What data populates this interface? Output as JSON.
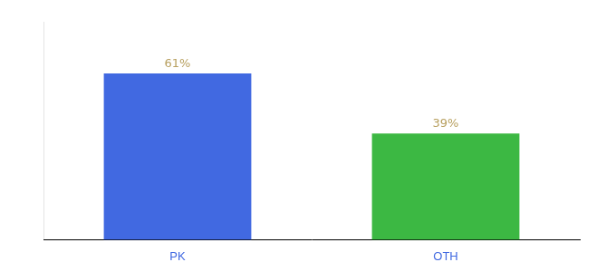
{
  "chart_data": {
    "type": "bar",
    "categories": [
      "PK",
      "OTH"
    ],
    "values": [
      61,
      39
    ],
    "value_labels": [
      "61%",
      "39%"
    ],
    "colors": [
      "#4169e1",
      "#3cb843"
    ],
    "ylim": [
      0,
      80
    ],
    "data_labels": true,
    "tick_labels": "x",
    "grid": false
  }
}
